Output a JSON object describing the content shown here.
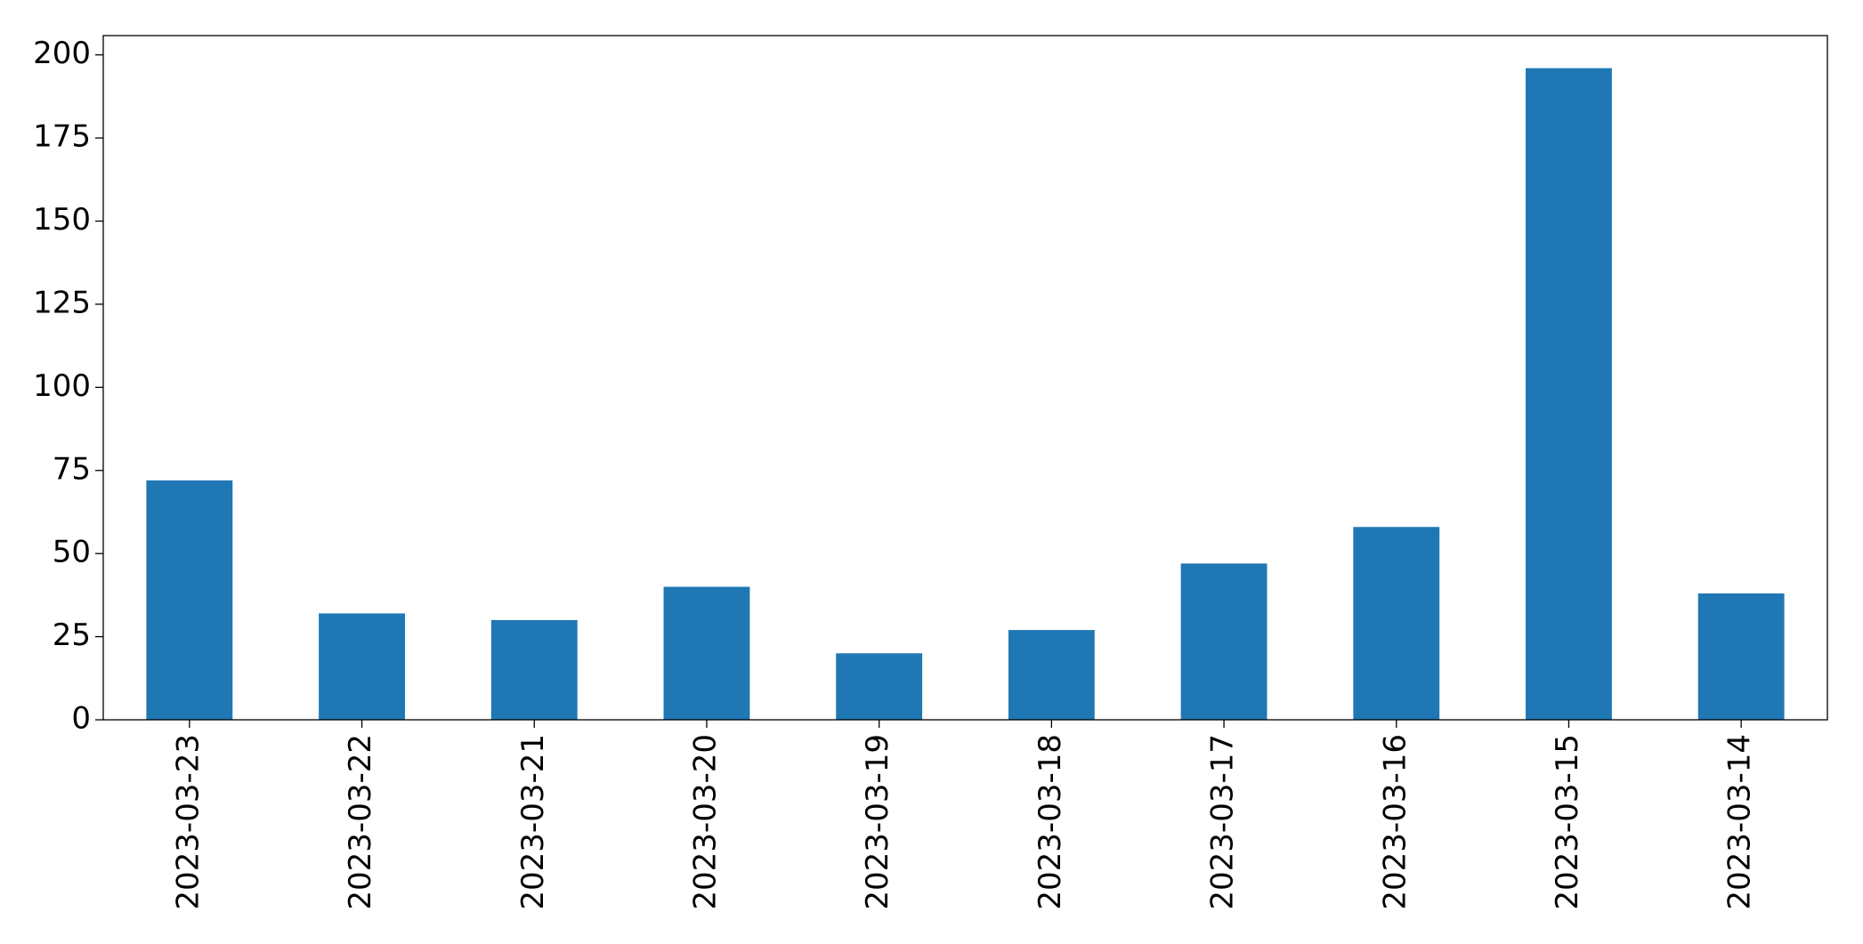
{
  "chart_data": {
    "type": "bar",
    "categories": [
      "2023-03-23",
      "2023-03-22",
      "2023-03-21",
      "2023-03-20",
      "2023-03-19",
      "2023-03-18",
      "2023-03-17",
      "2023-03-16",
      "2023-03-15",
      "2023-03-14"
    ],
    "values": [
      72,
      32,
      30,
      40,
      20,
      27,
      47,
      58,
      196,
      38
    ],
    "color": "#1f77b4",
    "ylim": [
      0,
      205.8
    ],
    "yticks": [
      0,
      25,
      50,
      75,
      100,
      125,
      150,
      175,
      200
    ],
    "grid": false
  }
}
